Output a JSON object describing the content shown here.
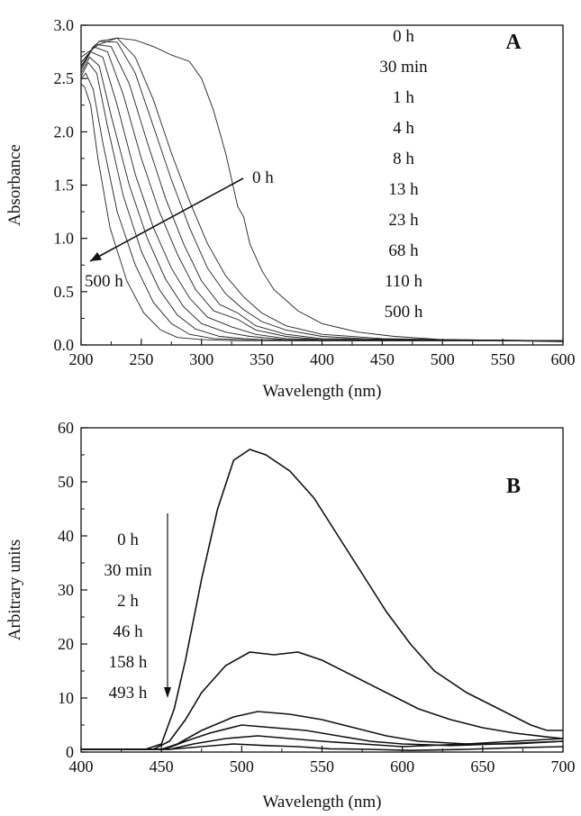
{
  "chart_data": [
    {
      "panel": "A",
      "type": "line",
      "panel_letter": "A",
      "xlabel": "Wavelength (nm)",
      "ylabel": "Absorbance",
      "xlim": [
        200,
        600
      ],
      "ylim": [
        0.0,
        3.0
      ],
      "x_ticks": [
        "200",
        "250",
        "300",
        "350",
        "400",
        "450",
        "500",
        "550",
        "600"
      ],
      "y_ticks": [
        "0.0",
        "0.5",
        "1.0",
        "1.5",
        "2.0",
        "2.5",
        "3.0"
      ],
      "legend": [
        "0 h",
        "30 min",
        "1 h",
        "4 h",
        "8 h",
        "13 h",
        "23 h",
        "68 h",
        "110 h",
        "500 h"
      ],
      "arrow_start_label": "0 h",
      "arrow_end_label": "500 h",
      "series": [
        {
          "x": [
            200,
            215,
            230,
            245,
            260,
            275,
            290,
            300,
            310,
            320,
            330,
            335,
            340,
            350,
            360,
            380,
            400,
            430,
            460,
            500,
            550,
            600
          ],
          "y": [
            2.7,
            2.82,
            2.88,
            2.86,
            2.8,
            2.72,
            2.66,
            2.5,
            2.2,
            1.8,
            1.3,
            1.2,
            0.95,
            0.7,
            0.52,
            0.32,
            0.2,
            0.12,
            0.08,
            0.05,
            0.04,
            0.03
          ]
        },
        {
          "x": [
            200,
            215,
            230,
            245,
            260,
            275,
            290,
            305,
            320,
            335,
            350,
            370,
            400,
            450,
            500,
            600
          ],
          "y": [
            2.65,
            2.85,
            2.88,
            2.7,
            2.3,
            1.8,
            1.35,
            0.95,
            0.65,
            0.45,
            0.3,
            0.18,
            0.1,
            0.06,
            0.05,
            0.04
          ]
        },
        {
          "x": [
            200,
            215,
            230,
            245,
            260,
            275,
            290,
            305,
            320,
            335,
            350,
            370,
            400,
            450,
            600
          ],
          "y": [
            2.65,
            2.85,
            2.84,
            2.55,
            2.05,
            1.55,
            1.1,
            0.72,
            0.48,
            0.33,
            0.22,
            0.14,
            0.08,
            0.05,
            0.04
          ]
        },
        {
          "x": [
            200,
            212,
            225,
            240,
            255,
            270,
            285,
            300,
            315,
            330,
            345,
            370,
            400,
            600
          ],
          "y": [
            2.62,
            2.82,
            2.8,
            2.45,
            1.9,
            1.38,
            0.95,
            0.6,
            0.38,
            0.3,
            0.18,
            0.1,
            0.06,
            0.04
          ]
        },
        {
          "x": [
            200,
            210,
            222,
            235,
            250,
            265,
            280,
            295,
            310,
            330,
            345,
            370,
            400,
            600
          ],
          "y": [
            2.6,
            2.8,
            2.75,
            2.35,
            1.75,
            1.25,
            0.85,
            0.52,
            0.32,
            0.24,
            0.14,
            0.08,
            0.05,
            0.04
          ]
        },
        {
          "x": [
            200,
            208,
            218,
            230,
            245,
            260,
            275,
            290,
            305,
            325,
            345,
            370,
            400,
            600
          ],
          "y": [
            2.58,
            2.75,
            2.7,
            2.25,
            1.6,
            1.1,
            0.72,
            0.44,
            0.26,
            0.17,
            0.1,
            0.06,
            0.05,
            0.04
          ]
        },
        {
          "x": [
            200,
            207,
            215,
            225,
            240,
            255,
            270,
            285,
            300,
            320,
            340,
            370,
            400,
            600
          ],
          "y": [
            2.55,
            2.7,
            2.62,
            2.15,
            1.5,
            1.0,
            0.62,
            0.36,
            0.2,
            0.12,
            0.08,
            0.05,
            0.04,
            0.04
          ]
        },
        {
          "x": [
            200,
            206,
            213,
            222,
            235,
            250,
            265,
            280,
            295,
            315,
            335,
            370,
            600
          ],
          "y": [
            2.52,
            2.65,
            2.55,
            2.05,
            1.4,
            0.88,
            0.52,
            0.28,
            0.15,
            0.08,
            0.06,
            0.04,
            0.04
          ]
        },
        {
          "x": [
            200,
            204,
            210,
            218,
            230,
            245,
            260,
            275,
            290,
            310,
            335,
            600
          ],
          "y": [
            2.5,
            2.55,
            2.4,
            1.9,
            1.25,
            0.75,
            0.4,
            0.2,
            0.1,
            0.06,
            0.05,
            0.04
          ]
        },
        {
          "x": [
            200,
            203,
            208,
            214,
            224,
            238,
            252,
            266,
            280,
            300,
            330,
            600
          ],
          "y": [
            2.45,
            2.42,
            2.25,
            1.75,
            1.1,
            0.6,
            0.3,
            0.14,
            0.07,
            0.05,
            0.04,
            0.04
          ]
        }
      ]
    },
    {
      "panel": "B",
      "type": "line",
      "panel_letter": "B",
      "xlabel": "Wavelength (nm)",
      "ylabel": "Arbitrary units",
      "xlim": [
        400,
        700
      ],
      "ylim": [
        0,
        60
      ],
      "x_ticks": [
        "400",
        "450",
        "500",
        "550",
        "600",
        "650",
        "700"
      ],
      "y_ticks": [
        "0",
        "10",
        "20",
        "30",
        "40",
        "50",
        "60"
      ],
      "legend": [
        "0 h",
        "30 min",
        "2 h",
        "46 h",
        "158 h",
        "493 h"
      ],
      "series": [
        {
          "x": [
            400,
            440,
            450,
            458,
            465,
            475,
            485,
            495,
            505,
            515,
            530,
            545,
            560,
            575,
            590,
            605,
            620,
            640,
            660,
            680,
            690,
            700
          ],
          "y": [
            0.5,
            0.5,
            1.5,
            8,
            17,
            32,
            45,
            54,
            56,
            55,
            52,
            47,
            40,
            33,
            26,
            20,
            15,
            11,
            8,
            5,
            4,
            4
          ]
        },
        {
          "x": [
            400,
            445,
            455,
            465,
            475,
            490,
            505,
            520,
            535,
            550,
            570,
            590,
            610,
            630,
            650,
            670,
            690,
            700
          ],
          "y": [
            0.5,
            0.5,
            2,
            6,
            11,
            16,
            18.5,
            18,
            18.5,
            17,
            14,
            11,
            8,
            6,
            4.5,
            3.5,
            2.8,
            2.5
          ]
        },
        {
          "x": [
            400,
            450,
            460,
            475,
            495,
            510,
            530,
            550,
            570,
            590,
            610,
            640,
            670,
            700
          ],
          "y": [
            0.5,
            0.5,
            1.5,
            4,
            6.5,
            7.5,
            7,
            6,
            4.5,
            3,
            2,
            1.5,
            1.5,
            2
          ]
        },
        {
          "x": [
            400,
            452,
            465,
            480,
            500,
            520,
            540,
            560,
            580,
            600,
            630,
            660,
            700
          ],
          "y": [
            0.5,
            0.5,
            2,
            3.5,
            5,
            4.5,
            4,
            3,
            2,
            1.5,
            1.2,
            1.5,
            2
          ]
        },
        {
          "x": [
            400,
            455,
            470,
            490,
            510,
            530,
            550,
            575,
            600,
            640,
            670,
            700
          ],
          "y": [
            0.5,
            0.5,
            1.5,
            2.5,
            3,
            2.5,
            2,
            1.5,
            1,
            1.5,
            2,
            2.5
          ]
        },
        {
          "x": [
            400,
            455,
            475,
            495,
            515,
            535,
            555,
            580,
            605,
            640,
            670,
            700
          ],
          "y": [
            0.5,
            0.5,
            1,
            1.5,
            1.2,
            1,
            0.6,
            0.5,
            0.3,
            0.5,
            0.8,
            1
          ]
        }
      ]
    }
  ]
}
